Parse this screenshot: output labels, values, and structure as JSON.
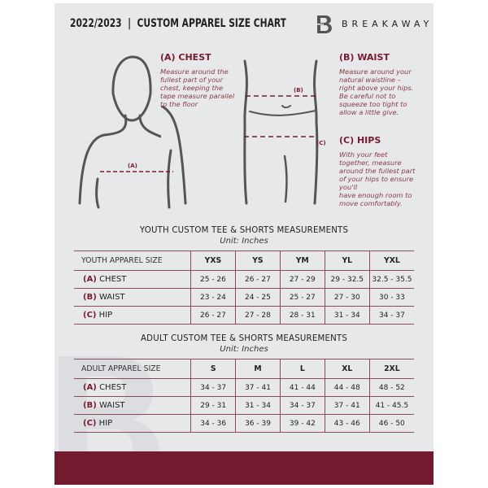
{
  "header": {
    "title": "2022/2023  |  CUSTOM APPAREL SIZE CHART",
    "brand": "BREAKAWAY"
  },
  "guides": {
    "chest": {
      "heading": "(A) CHEST",
      "text": [
        "Measure around the",
        "fullest part of your",
        "chest, keeping the",
        "tape measure parallel",
        "to the floor"
      ],
      "marker": "(A)"
    },
    "waist": {
      "heading": "(B) WAIST",
      "text": [
        "Measure around your",
        "natural waistline –",
        "right above your hips.",
        "Be careful not to",
        "squeeze too tight to",
        "allow a little give."
      ],
      "marker": "(B)"
    },
    "hips": {
      "heading": "(C) HIPS",
      "text": [
        "With your feet",
        "together, measure",
        "around the fullest part",
        "of your hips to ensure",
        "you'll",
        "have enough room to",
        "move comfortably."
      ],
      "marker": "(C)"
    }
  },
  "youth": {
    "title": "YOUTH CUSTOM TEE & SHORTS MEASUREMENTS",
    "unit": "Unit: Inches",
    "header": "YOUTH APPAREL SIZE",
    "sizes": [
      "YXS",
      "YS",
      "YM",
      "YL",
      "YXL"
    ],
    "rows": [
      {
        "letter": "(A)",
        "name": "CHEST",
        "values": [
          "25 - 26",
          "26 - 27",
          "27 - 29",
          "29 - 32.5",
          "32.5 - 35.5"
        ]
      },
      {
        "letter": "(B)",
        "name": "WAIST",
        "values": [
          "23 - 24",
          "24 - 25",
          "25 - 27",
          "27 - 30",
          "30 - 33"
        ]
      },
      {
        "letter": "(C)",
        "name": "HIP",
        "values": [
          "26 - 27",
          "27 - 28",
          "28 - 31",
          "31 - 34",
          "34 - 37"
        ]
      }
    ]
  },
  "adult": {
    "title": "ADULT CUSTOM TEE & SHORTS MEASUREMENTS",
    "unit": "Unit: Inches",
    "header": "ADULT APPAREL SIZE",
    "sizes": [
      "S",
      "M",
      "L",
      "XL",
      "2XL"
    ],
    "rows": [
      {
        "letter": "(A)",
        "name": "CHEST",
        "values": [
          "34 - 37",
          "37 - 41",
          "41 - 44",
          "44 - 48",
          "48 - 52"
        ]
      },
      {
        "letter": "(B)",
        "name": "WAIST",
        "values": [
          "29 - 31",
          "31 - 34",
          "34 - 37",
          "37 - 41",
          "41 - 45.5"
        ]
      },
      {
        "letter": "(C)",
        "name": "HIP",
        "values": [
          "34 - 36",
          "36 - 39",
          "39 - 42",
          "43 - 46",
          "46 - 50"
        ]
      }
    ]
  },
  "colors": {
    "accent": "#7a1a30",
    "background": "#e7e8ea",
    "footer": "#731a2f"
  },
  "logo_letter": "B"
}
